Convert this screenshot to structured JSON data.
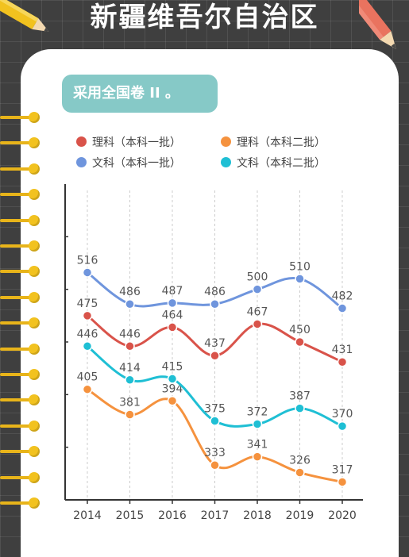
{
  "page": {
    "title": "新疆维吾尔自治区",
    "subtitle": "采用全国卷 II 。"
  },
  "colors": {
    "background": "#3f3f3f",
    "card": "#ffffff",
    "subtitle_bg": "#86c9c7",
    "ring": "#f2c21f"
  },
  "chart_data": {
    "type": "line",
    "categories": [
      "2014",
      "2015",
      "2016",
      "2017",
      "2018",
      "2019",
      "2020"
    ],
    "ylim": [
      300,
      600
    ],
    "grid_x": true,
    "grid_y": false,
    "legend_position": "top",
    "series": [
      {
        "name": "理科（本科一批）",
        "color": "#d9534a",
        "values": [
          475,
          446,
          464,
          437,
          467,
          450,
          431
        ]
      },
      {
        "name": "理科（本科二批）",
        "color": "#f5923e",
        "values": [
          405,
          381,
          394,
          333,
          341,
          326,
          317
        ]
      },
      {
        "name": "文科（本科一批）",
        "color": "#6f95dd",
        "values": [
          516,
          486,
          487,
          486,
          500,
          510,
          482
        ]
      },
      {
        "name": "文科（本科二批）",
        "color": "#1fbfd4",
        "values": [
          446,
          414,
          415,
          375,
          372,
          387,
          370
        ]
      }
    ]
  }
}
